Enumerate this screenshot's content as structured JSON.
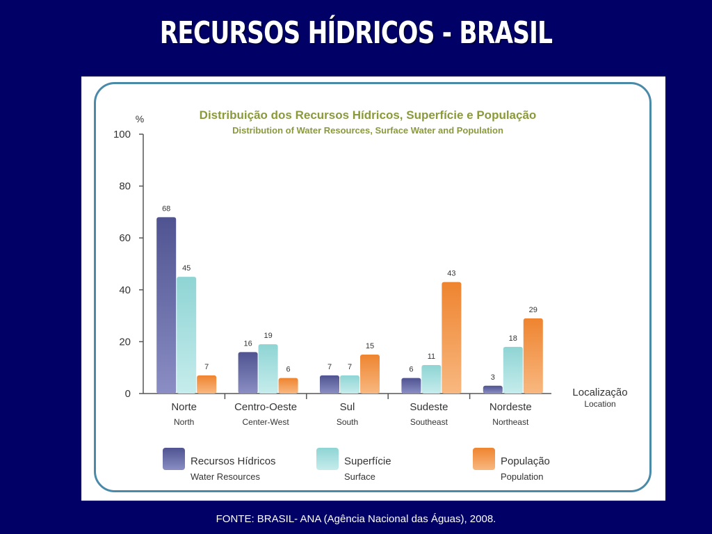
{
  "slide": {
    "title": "RECURSOS HÍDRICOS - BRASIL",
    "source": "FONTE: BRASIL- ANA (Agência Nacional das Águas), 2008."
  },
  "colors": {
    "background": "#000066",
    "water": "#5a5f9e",
    "surface": "#9ad8d8",
    "population": "#f28c38",
    "title_green": "#8a9a3a",
    "frame": "#4a8aa8"
  },
  "chart_data": {
    "type": "bar",
    "title": "Distribuição dos Recursos Hídricos, Superfície e População",
    "subtitle": "Distribution of Water Resources, Surface Water and Population",
    "ylabel": "%",
    "xlabel": "Localização",
    "xlabel_en": "Location",
    "ylim": [
      0,
      100
    ],
    "yticks": [
      0,
      20,
      40,
      60,
      80,
      100
    ],
    "categories": [
      "Norte",
      "Centro-Oeste",
      "Sul",
      "Sudeste",
      "Nordeste"
    ],
    "categories_en": [
      "North",
      "Center-West",
      "South",
      "Southeast",
      "Northeast"
    ],
    "series": [
      {
        "name": "Recursos Hídricos",
        "name_en": "Water Resources",
        "color": "#5a5f9e",
        "values": [
          68,
          16,
          7,
          6,
          3
        ]
      },
      {
        "name": "Superfície",
        "name_en": "Surface",
        "color": "#9ad8d8",
        "values": [
          45,
          19,
          7,
          11,
          18
        ]
      },
      {
        "name": "População",
        "name_en": "Population",
        "color": "#f28c38",
        "values": [
          7,
          6,
          15,
          43,
          29
        ]
      }
    ],
    "grid": false,
    "legend": "bottom"
  }
}
